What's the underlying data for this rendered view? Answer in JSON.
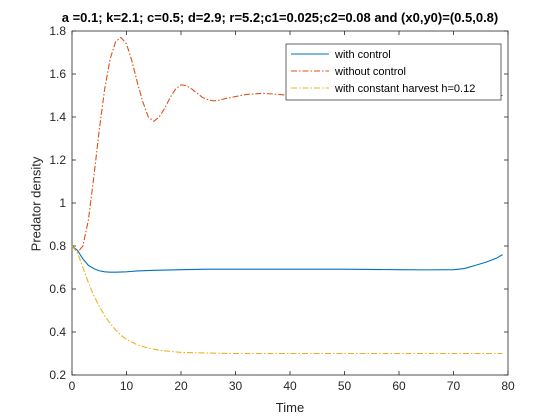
{
  "chart_data": {
    "type": "line",
    "title": "a =0.1; k=2.1; c=0.5; d=2.9; r=5.2;c1=0.025;c2=0.08 and (x0,y0)=(0.5,0.8)",
    "xlabel": "Time",
    "ylabel": "Predator density",
    "xlim": [
      0,
      80
    ],
    "ylim": [
      0.2,
      1.8
    ],
    "xticks": [
      0,
      10,
      20,
      30,
      40,
      50,
      60,
      70,
      80
    ],
    "yticks": [
      0.2,
      0.4,
      0.6,
      0.8,
      1.0,
      1.2,
      1.4,
      1.6,
      1.8
    ],
    "xtick_labels": [
      "0",
      "10",
      "20",
      "30",
      "40",
      "50",
      "60",
      "70",
      "80"
    ],
    "ytick_labels": [
      "0.2",
      "0.4",
      "0.6",
      "0.8",
      "1",
      "1.2",
      "1.4",
      "1.6",
      "1.8"
    ],
    "grid": false,
    "legend_position": "top-right",
    "series": [
      {
        "name": "with control",
        "color": "#0072BD",
        "line_style": "solid",
        "x": [
          0,
          1,
          2,
          3,
          4,
          5,
          6,
          7,
          8,
          10,
          12,
          15,
          20,
          25,
          30,
          40,
          50,
          60,
          65,
          70,
          72,
          74,
          76,
          78,
          79
        ],
        "y": [
          0.8,
          0.78,
          0.74,
          0.71,
          0.695,
          0.685,
          0.68,
          0.678,
          0.678,
          0.68,
          0.684,
          0.687,
          0.69,
          0.692,
          0.692,
          0.692,
          0.692,
          0.69,
          0.689,
          0.69,
          0.695,
          0.71,
          0.725,
          0.745,
          0.76
        ]
      },
      {
        "name": "without control",
        "color": "#D95319",
        "line_style": "dash-dot",
        "x": [
          0,
          1,
          2,
          3,
          4,
          5,
          6,
          7,
          8,
          9,
          10,
          11,
          12,
          13,
          14,
          15,
          16,
          17,
          18,
          19,
          20,
          21,
          22,
          23,
          24,
          25,
          26,
          27,
          28,
          30,
          32,
          35,
          38,
          40,
          43,
          45,
          50,
          55,
          60,
          65,
          70,
          75,
          79
        ],
        "y": [
          0.8,
          0.77,
          0.8,
          0.92,
          1.12,
          1.34,
          1.53,
          1.67,
          1.75,
          1.77,
          1.74,
          1.66,
          1.56,
          1.47,
          1.4,
          1.38,
          1.4,
          1.44,
          1.49,
          1.53,
          1.55,
          1.545,
          1.53,
          1.51,
          1.49,
          1.48,
          1.475,
          1.478,
          1.485,
          1.495,
          1.505,
          1.51,
          1.505,
          1.5,
          1.5,
          1.5,
          1.5,
          1.5,
          1.5,
          1.5,
          1.5,
          1.5,
          1.5
        ]
      },
      {
        "name": "with constant harvest h=0.12",
        "color": "#EDB120",
        "line_style": "dash-dot",
        "x": [
          0,
          1,
          2,
          3,
          4,
          5,
          6,
          7,
          8,
          9,
          10,
          12,
          14,
          16,
          18,
          20,
          25,
          30,
          40,
          50,
          60,
          70,
          79
        ],
        "y": [
          0.8,
          0.77,
          0.7,
          0.63,
          0.57,
          0.52,
          0.475,
          0.44,
          0.41,
          0.385,
          0.365,
          0.34,
          0.325,
          0.315,
          0.31,
          0.305,
          0.302,
          0.3,
          0.3,
          0.3,
          0.3,
          0.3,
          0.3
        ]
      }
    ]
  }
}
